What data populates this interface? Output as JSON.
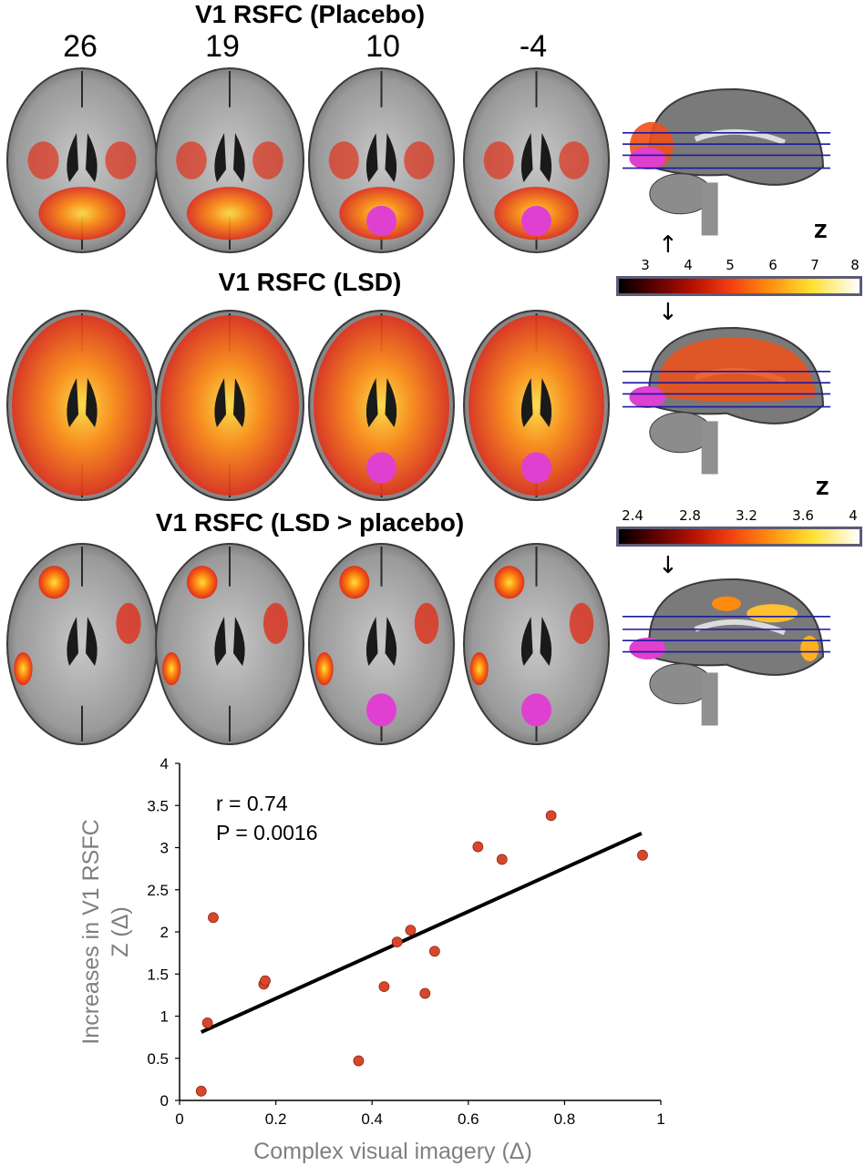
{
  "panels": {
    "placebo_title": "V1 RSFC (Placebo)",
    "lsd_title": "V1 RSFC (LSD)",
    "diff_title": "V1 RSFC (LSD > placebo)",
    "slice_labels": [
      "26",
      "19",
      "10",
      "-4"
    ]
  },
  "colorbars": {
    "top": {
      "label": "Z",
      "ticks": [
        "3",
        "4",
        "5",
        "6",
        "7",
        "8"
      ]
    },
    "bottom": {
      "label": "Z",
      "ticks": [
        "2.4",
        "2.8",
        "3.2",
        "3.6",
        "4"
      ]
    }
  },
  "colors": {
    "hot_low": "#3a0000",
    "hot_mid": "#e0301a",
    "hot_high": "#ffe040",
    "seed": "#e040d0",
    "brain_gray": "#a8a8a8",
    "slice_line": "#1a1aa0",
    "point": "#d9472b"
  },
  "chart_data": {
    "type": "scatter",
    "xlabel": "Complex visual imagery (Δ)",
    "ylabel": "Increases in V1 RSFC\nZ (Δ)",
    "xlim": [
      0,
      1
    ],
    "ylim": [
      0,
      4
    ],
    "xticks": [
      "0",
      "0.2",
      "0.4",
      "0.6",
      "0.8",
      "1"
    ],
    "yticks": [
      "0",
      "0.5",
      "1",
      "1.5",
      "2",
      "2.5",
      "3",
      "3.5",
      "4"
    ],
    "annotation_r": "r = 0.74",
    "annotation_p": "P = 0.0016",
    "points": [
      {
        "x": 0.045,
        "y": 0.11
      },
      {
        "x": 0.058,
        "y": 0.92
      },
      {
        "x": 0.07,
        "y": 2.17
      },
      {
        "x": 0.175,
        "y": 1.38
      },
      {
        "x": 0.178,
        "y": 1.42
      },
      {
        "x": 0.372,
        "y": 0.47
      },
      {
        "x": 0.425,
        "y": 1.35
      },
      {
        "x": 0.452,
        "y": 1.88
      },
      {
        "x": 0.48,
        "y": 2.02
      },
      {
        "x": 0.51,
        "y": 1.27
      },
      {
        "x": 0.53,
        "y": 1.77
      },
      {
        "x": 0.62,
        "y": 3.01
      },
      {
        "x": 0.67,
        "y": 2.86
      },
      {
        "x": 0.772,
        "y": 3.38
      },
      {
        "x": 0.962,
        "y": 2.91
      }
    ],
    "fit_line": {
      "x0": 0.045,
      "y0": 0.81,
      "x1": 0.96,
      "y1": 3.17
    }
  }
}
